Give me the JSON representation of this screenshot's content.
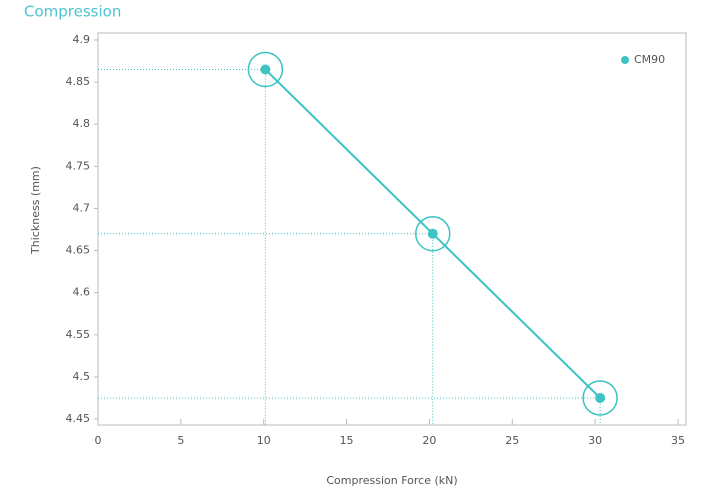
{
  "chart_data": {
    "type": "line",
    "title": "Compression",
    "x_label": "Compression Force (kN)",
    "y_label": "Thickness (mm)",
    "series": [
      {
        "name": "CM90",
        "color": "#3cc3c3",
        "x": [
          10.1,
          20.2,
          30.3
        ],
        "values": [
          4.865,
          4.67,
          4.475
        ]
      }
    ],
    "xlim": [
      0,
      35
    ],
    "xticks": [
      0,
      5,
      10,
      15,
      20,
      25,
      30,
      35
    ],
    "ylim": [
      4.45,
      4.9
    ],
    "yticks": [
      4.45,
      4.5,
      4.55,
      4.6,
      4.65,
      4.7,
      4.75,
      4.8,
      4.85,
      4.9
    ],
    "legend": "top-right",
    "guides": true
  }
}
